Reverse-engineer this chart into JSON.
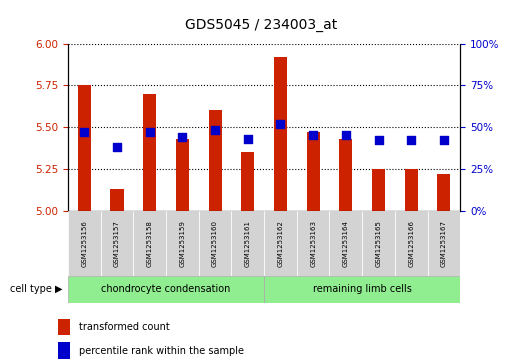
{
  "title": "GDS5045 / 234003_at",
  "samples": [
    "GSM1253156",
    "GSM1253157",
    "GSM1253158",
    "GSM1253159",
    "GSM1253160",
    "GSM1253161",
    "GSM1253162",
    "GSM1253163",
    "GSM1253164",
    "GSM1253165",
    "GSM1253166",
    "GSM1253167"
  ],
  "transformed_count": [
    5.75,
    5.13,
    5.7,
    5.43,
    5.6,
    5.35,
    5.92,
    5.47,
    5.43,
    5.25,
    5.25,
    5.22
  ],
  "percentile_rank": [
    47,
    38,
    47,
    44,
    48,
    43,
    52,
    45,
    45,
    42,
    42,
    42
  ],
  "ylim_left": [
    5.0,
    6.0
  ],
  "ylim_right": [
    0,
    100
  ],
  "yticks_left": [
    5.0,
    5.25,
    5.5,
    5.75,
    6.0
  ],
  "yticks_right": [
    0,
    25,
    50,
    75,
    100
  ],
  "ytick_labels_right": [
    "0%",
    "25%",
    "50%",
    "75%",
    "100%"
  ],
  "group1_label": "chondrocyte condensation",
  "group2_label": "remaining limb cells",
  "group1_count": 6,
  "group2_count": 6,
  "bar_color": "#cc2200",
  "dot_color": "#0000cc",
  "group1_bg": "#90ee90",
  "group2_bg": "#90ee90",
  "sample_bg": "#d3d3d3",
  "bar_width": 0.4,
  "dot_size": 30,
  "legend_red_label": "transformed count",
  "legend_blue_label": "percentile rank within the sample",
  "cell_type_label": "cell type",
  "left_tick_color": "#cc2200",
  "right_tick_color": "#0000cc",
  "dotted_line_color": "#000000",
  "base_value": 5.0
}
